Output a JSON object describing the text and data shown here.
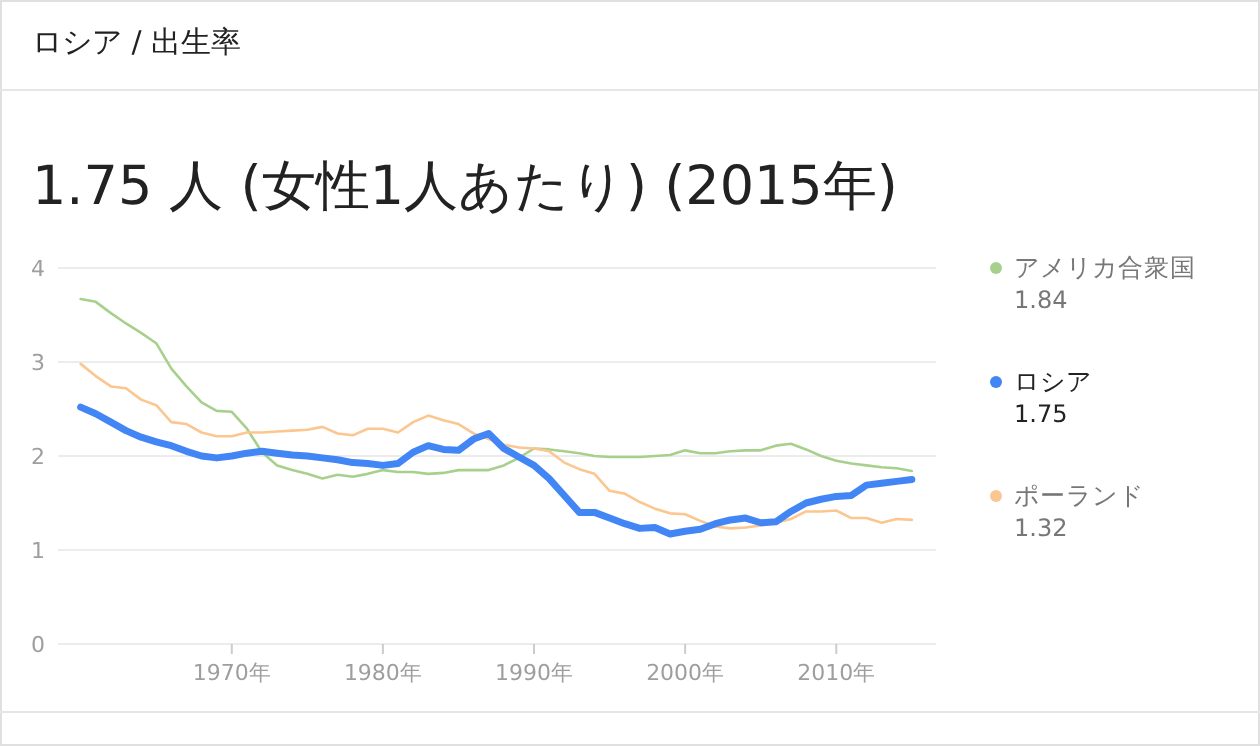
{
  "chart_data": {
    "type": "line",
    "title": "ロシア / 出生率",
    "subtitle": "1.75 人 (女性1人あたり) (2015年)",
    "x": [
      1960,
      1961,
      1962,
      1963,
      1964,
      1965,
      1966,
      1967,
      1968,
      1969,
      1970,
      1971,
      1972,
      1973,
      1974,
      1975,
      1976,
      1977,
      1978,
      1979,
      1980,
      1981,
      1982,
      1983,
      1984,
      1985,
      1986,
      1987,
      1988,
      1989,
      1990,
      1991,
      1992,
      1993,
      1994,
      1995,
      1996,
      1997,
      1998,
      1999,
      2000,
      2001,
      2002,
      2003,
      2004,
      2005,
      2006,
      2007,
      2008,
      2009,
      2010,
      2011,
      2012,
      2013,
      2014,
      2015
    ],
    "series": [
      {
        "name": "アメリカ合衆国",
        "color": "#a8d08d",
        "values": [
          3.67,
          3.64,
          3.52,
          3.41,
          3.31,
          3.2,
          2.93,
          2.74,
          2.57,
          2.48,
          2.47,
          2.29,
          2.04,
          1.9,
          1.85,
          1.81,
          1.76,
          1.8,
          1.78,
          1.81,
          1.85,
          1.83,
          1.83,
          1.81,
          1.82,
          1.85,
          1.85,
          1.85,
          1.9,
          1.98,
          2.08,
          2.07,
          2.05,
          2.03,
          2.0,
          1.99,
          1.99,
          1.99,
          2.0,
          2.01,
          2.06,
          2.03,
          2.03,
          2.05,
          2.06,
          2.06,
          2.11,
          2.13,
          2.07,
          2.0,
          1.95,
          1.92,
          1.9,
          1.88,
          1.87,
          1.84
        ]
      },
      {
        "name": "ロシア",
        "color": "#4285f4",
        "values": [
          2.52,
          2.45,
          2.36,
          2.27,
          2.2,
          2.15,
          2.11,
          2.05,
          2.0,
          1.98,
          2.0,
          2.03,
          2.05,
          2.03,
          2.01,
          2.0,
          1.98,
          1.96,
          1.93,
          1.92,
          1.9,
          1.92,
          2.04,
          2.11,
          2.07,
          2.06,
          2.18,
          2.24,
          2.08,
          1.99,
          1.9,
          1.76,
          1.58,
          1.4,
          1.4,
          1.34,
          1.28,
          1.23,
          1.24,
          1.17,
          1.2,
          1.22,
          1.28,
          1.32,
          1.34,
          1.29,
          1.3,
          1.41,
          1.5,
          1.54,
          1.57,
          1.58,
          1.69,
          1.71,
          1.73,
          1.75
        ]
      },
      {
        "name": "ポーランド",
        "color": "#fbc68f",
        "values": [
          2.98,
          2.85,
          2.74,
          2.72,
          2.6,
          2.54,
          2.36,
          2.34,
          2.25,
          2.21,
          2.21,
          2.25,
          2.25,
          2.26,
          2.27,
          2.28,
          2.31,
          2.24,
          2.22,
          2.29,
          2.29,
          2.25,
          2.36,
          2.43,
          2.38,
          2.34,
          2.24,
          2.18,
          2.12,
          2.09,
          2.08,
          2.05,
          1.93,
          1.86,
          1.81,
          1.63,
          1.6,
          1.51,
          1.44,
          1.39,
          1.38,
          1.31,
          1.25,
          1.23,
          1.24,
          1.26,
          1.29,
          1.33,
          1.41,
          1.41,
          1.42,
          1.34,
          1.34,
          1.29,
          1.33,
          1.32
        ]
      }
    ],
    "annotations": [
      "1.84",
      "1.75",
      "1.32"
    ],
    "xlim": [
      1958.5,
      2016.6
    ],
    "xticks": [
      {
        "value": 1970,
        "label": "1970年"
      },
      {
        "value": 1980,
        "label": "1980年"
      },
      {
        "value": 1990,
        "label": "1990年"
      },
      {
        "value": 2000,
        "label": "2000年"
      },
      {
        "value": 2010,
        "label": "2010年"
      }
    ],
    "ylim": [
      0,
      4
    ],
    "yticks": [
      0,
      1,
      2,
      3,
      4
    ],
    "grid": "y",
    "legend": "right",
    "marker": "none",
    "line_style": "solid"
  }
}
